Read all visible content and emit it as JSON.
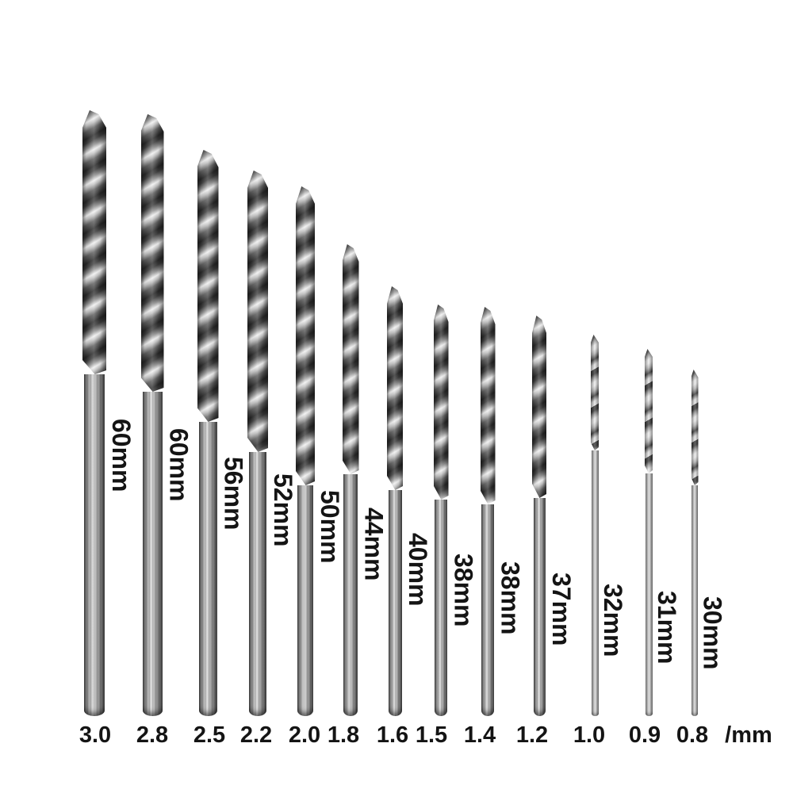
{
  "unit_label": "/mm",
  "bits": [
    {
      "diameter_mm": "3.0",
      "length_label": "60mm"
    },
    {
      "diameter_mm": "2.8",
      "length_label": "60mm"
    },
    {
      "diameter_mm": "2.5",
      "length_label": "56mm"
    },
    {
      "diameter_mm": "2.2",
      "length_label": "52mm"
    },
    {
      "diameter_mm": "2.0",
      "length_label": "50mm"
    },
    {
      "diameter_mm": "1.8",
      "length_label": "44mm"
    },
    {
      "diameter_mm": "1.6",
      "length_label": "40mm"
    },
    {
      "diameter_mm": "1.5",
      "length_label": "38mm"
    },
    {
      "diameter_mm": "1.4",
      "length_label": "38mm"
    },
    {
      "diameter_mm": "1.2",
      "length_label": "37mm"
    },
    {
      "diameter_mm": "1.0",
      "length_label": "32mm"
    },
    {
      "diameter_mm": "0.9",
      "length_label": "31mm"
    },
    {
      "diameter_mm": "0.8",
      "length_label": "30mm"
    }
  ]
}
